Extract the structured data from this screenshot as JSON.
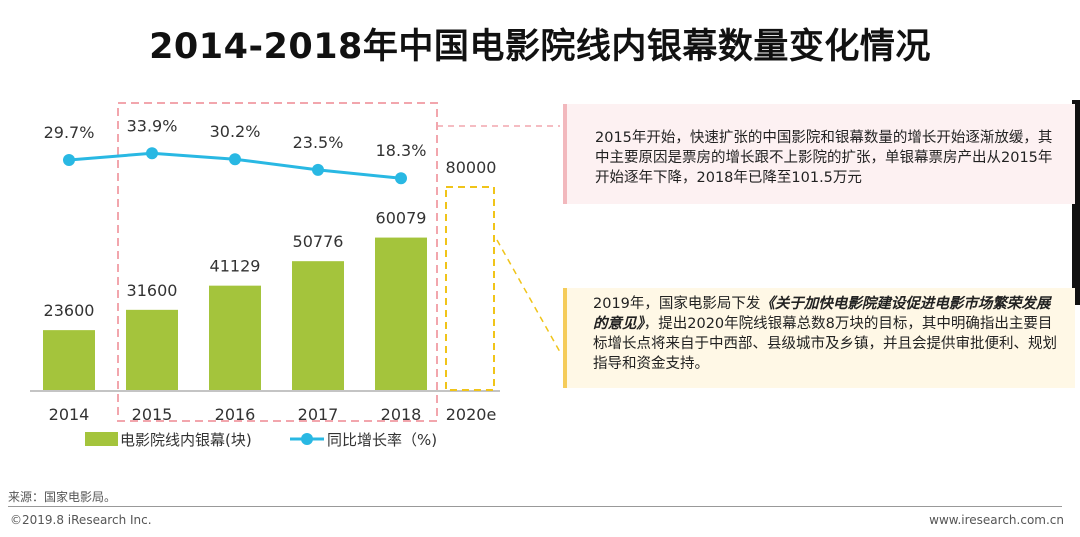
{
  "title": "2014-2018年中国电影院线内银幕数量变化情况",
  "chart_data": {
    "type": "bar",
    "categories": [
      "2014",
      "2015",
      "2016",
      "2017",
      "2018",
      "2020e"
    ],
    "series": [
      {
        "name": "电影院线内银幕(块)",
        "type": "bar",
        "values": [
          23600,
          31600,
          41129,
          50776,
          60079,
          80000
        ],
        "color": "#a4c43c"
      },
      {
        "name": "同比增长率（%)",
        "type": "line",
        "values": [
          29.7,
          33.9,
          30.2,
          23.5,
          18.3,
          null
        ],
        "color": "#29b8e3"
      }
    ],
    "bar_labels": [
      "23600",
      "31600",
      "41129",
      "50776",
      "60079",
      "80000"
    ],
    "line_labels": [
      "29.7%",
      "33.9%",
      "30.2%",
      "23.5%",
      "18.3%",
      ""
    ],
    "legend": [
      "电影院线内银幕(块)",
      "同比增长率（%)"
    ],
    "legend_position": "bottom",
    "projected_category": "2020e",
    "highlight_range": [
      "2015",
      "2018"
    ]
  },
  "annotations": {
    "box_top": {
      "text": "2015年开始，快速扩张的中国影院和银幕数量的增长开始逐渐放缓，其中主要原因是票房的增长跟不上影院的扩张，单银幕票房产出从2015年开始逐年下降，2018年已降至101.5万元"
    },
    "box_bottom": {
      "text_before": "2019年，国家电影局下发",
      "text_bold": "《关于加快电影院建设促进电影市场繁荣发展的意见》",
      "text_after": "，提出2020年院线银幕总数8万块的目标，其中明确指出主要目标增长点将来自于中西部、县级城市及乡镇，并且会提供审批便利、规划指导和资金支持。"
    }
  },
  "footer": {
    "source": "来源：国家电影局。",
    "copyright": "©2019.8 iResearch Inc.",
    "website": "www.iresearch.com.cn"
  },
  "colors": {
    "bar": "#a4c43c",
    "line": "#29b8e3",
    "highlight_dash": "#f2a6ad",
    "projection_dash": "#f0c419",
    "box_top_bg": "#fdf1f2",
    "box_bottom_bg": "#fff8e6"
  }
}
